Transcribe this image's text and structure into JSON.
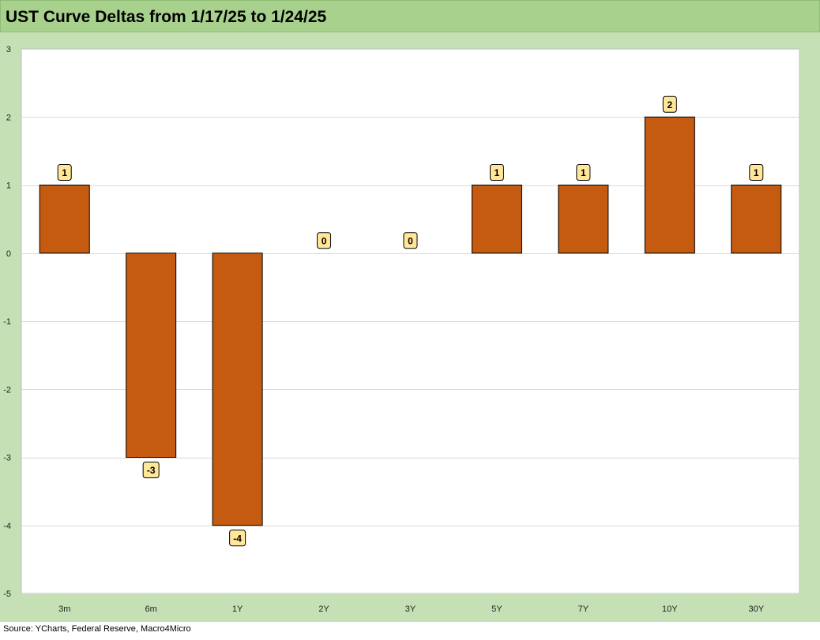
{
  "title": "UST Curve Deltas from 1/17/25 to 1/24/25",
  "source": "Source: YCharts, Federal Reserve, Macro4Micro",
  "colors": {
    "bar": "#c55a11",
    "label_fill": "#ffe699",
    "title_bar": "#a9d18e",
    "frame": "#c5e0b4",
    "grid": "#d9d9d9"
  },
  "chart_data": {
    "type": "bar",
    "title": "UST Curve Deltas from 1/17/25 to 1/24/25",
    "categories": [
      "3m",
      "6m",
      "1Y",
      "2Y",
      "3Y",
      "5Y",
      "7Y",
      "10Y",
      "30Y"
    ],
    "values": [
      1,
      -3,
      -4,
      0,
      0,
      1,
      1,
      2,
      1
    ],
    "data_labels": [
      "1",
      "-3",
      "-4",
      "0",
      "0",
      "1",
      "1",
      "2",
      "1"
    ],
    "ylim": [
      -5,
      3
    ],
    "yticks": [
      3,
      2,
      1,
      0,
      -1,
      -2,
      -3,
      -4,
      -5
    ],
    "grid": true,
    "legend": "none",
    "xlabel": "",
    "ylabel": ""
  }
}
